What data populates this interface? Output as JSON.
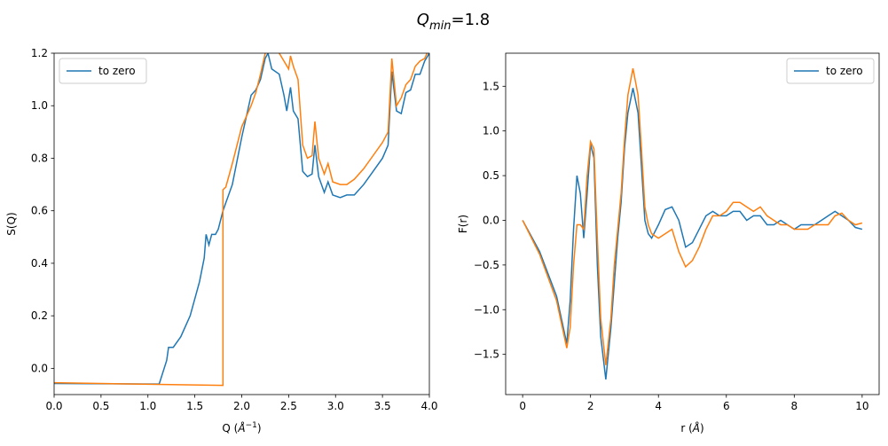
{
  "title": {
    "base": "Q",
    "sub": "min",
    "rest": "=1.8"
  },
  "chart_data": [
    {
      "type": "line",
      "ylabel": "S(Q)",
      "xlabel": {
        "pre": "Q (",
        "unit": "Å",
        "sup": "−1",
        "post": ")"
      },
      "xlim": [
        0,
        4
      ],
      "ylim": [
        -0.1,
        1.2
      ],
      "xticks": [
        {
          "value": 0,
          "label": "0.0"
        },
        0.5,
        {
          "value": 1,
          "label": "1.0"
        },
        1.5,
        {
          "value": 2,
          "label": "2.0"
        },
        2.5,
        {
          "value": 3,
          "label": "3.0"
        },
        3.5,
        {
          "value": 4,
          "label": "4.0"
        }
      ],
      "yticks": [
        {
          "value": 0,
          "label": "0.0"
        },
        0.2,
        0.4,
        0.6,
        0.8,
        {
          "value": 1,
          "label": "1.0"
        },
        1.2
      ],
      "legend": "upper left",
      "series": [
        {
          "name": "to zero",
          "color": "#1f77b4",
          "x": [
            0,
            1.12,
            1.2,
            1.22,
            1.27,
            1.35,
            1.45,
            1.55,
            1.6,
            1.62,
            1.65,
            1.68,
            1.72,
            1.75,
            1.8,
            1.83,
            1.9,
            2.0,
            2.05,
            2.1,
            2.15,
            2.2,
            2.25,
            2.28,
            2.32,
            2.4,
            2.45,
            2.48,
            2.52,
            2.55,
            2.6,
            2.65,
            2.7,
            2.75,
            2.78,
            2.82,
            2.88,
            2.92,
            2.97,
            3.05,
            3.12,
            3.2,
            3.3,
            3.4,
            3.5,
            3.56,
            3.6,
            3.65,
            3.7,
            3.75,
            3.8,
            3.85,
            3.9,
            3.95,
            4.0
          ],
          "values": [
            -0.058,
            -0.06,
            0.03,
            0.08,
            0.08,
            0.12,
            0.2,
            0.33,
            0.42,
            0.51,
            0.47,
            0.51,
            0.51,
            0.53,
            0.6,
            0.63,
            0.7,
            0.88,
            0.96,
            1.04,
            1.06,
            1.1,
            1.18,
            1.2,
            1.14,
            1.12,
            1.04,
            0.98,
            1.07,
            0.98,
            0.95,
            0.75,
            0.73,
            0.74,
            0.85,
            0.73,
            0.67,
            0.71,
            0.66,
            0.65,
            0.66,
            0.66,
            0.7,
            0.75,
            0.8,
            0.85,
            1.13,
            0.98,
            0.97,
            1.05,
            1.06,
            1.12,
            1.12,
            1.17,
            1.2
          ]
        },
        {
          "color": "#ff7f0e",
          "x": [
            0,
            1.8,
            1.8,
            1.83,
            1.9,
            2.0,
            2.1,
            2.15,
            2.2,
            2.25,
            2.3,
            2.35,
            2.4,
            2.45,
            2.5,
            2.52,
            2.55,
            2.6,
            2.65,
            2.7,
            2.75,
            2.78,
            2.82,
            2.88,
            2.92,
            2.97,
            3.05,
            3.12,
            3.2,
            3.3,
            3.4,
            3.5,
            3.56,
            3.6,
            3.65,
            3.7,
            3.75,
            3.8,
            3.85,
            3.9,
            3.95,
            4.0
          ],
          "values": [
            -0.055,
            -0.065,
            0.68,
            0.69,
            0.78,
            0.92,
            1.0,
            1.05,
            1.12,
            1.2,
            1.25,
            1.25,
            1.2,
            1.17,
            1.14,
            1.19,
            1.15,
            1.1,
            0.85,
            0.8,
            0.81,
            0.94,
            0.8,
            0.74,
            0.78,
            0.71,
            0.7,
            0.7,
            0.72,
            0.76,
            0.81,
            0.86,
            0.9,
            1.18,
            1.0,
            1.03,
            1.08,
            1.1,
            1.15,
            1.17,
            1.18,
            1.22
          ]
        }
      ]
    },
    {
      "type": "line",
      "ylabel": "F(r)",
      "xlabel": {
        "pre": "r (",
        "unit": "Å",
        "post": ")"
      },
      "xlim": [
        -0.5,
        10.5
      ],
      "ylim": [
        -1.95,
        1.87
      ],
      "xticks": [
        0,
        2,
        4,
        6,
        8,
        10
      ],
      "yticks": [
        {
          "value": -1.5,
          "label": "−1.5"
        },
        {
          "value": -1,
          "label": "−1.0"
        },
        {
          "value": -0.5,
          "label": "−0.5"
        },
        {
          "value": 0,
          "label": "0.0"
        },
        0.5,
        {
          "value": 1,
          "label": "1.0"
        },
        1.5
      ],
      "legend": "upper right",
      "x": [
        0,
        0.5,
        1.0,
        1.3,
        1.4,
        1.5,
        1.6,
        1.7,
        1.8,
        1.9,
        2.0,
        2.1,
        2.2,
        2.3,
        2.45,
        2.6,
        2.7,
        2.8,
        2.9,
        3.0,
        3.1,
        3.25,
        3.4,
        3.5,
        3.6,
        3.7,
        3.8,
        4.0,
        4.2,
        4.4,
        4.6,
        4.8,
        5.0,
        5.2,
        5.4,
        5.6,
        5.8,
        6.0,
        6.2,
        6.4,
        6.6,
        6.8,
        7.0,
        7.2,
        7.4,
        7.6,
        7.8,
        8.0,
        8.2,
        8.4,
        8.6,
        8.8,
        9.0,
        9.2,
        9.4,
        9.6,
        9.8,
        10
      ],
      "series": [
        {
          "name": "to zero",
          "color": "#1f77b4",
          "values": [
            0,
            -0.35,
            -0.85,
            -1.38,
            -0.9,
            -0.1,
            0.5,
            0.3,
            -0.2,
            0.3,
            0.85,
            0.7,
            -0.5,
            -1.3,
            -1.78,
            -1.2,
            -0.7,
            -0.2,
            0.2,
            0.8,
            1.2,
            1.48,
            1.2,
            0.6,
            0.0,
            -0.15,
            -0.2,
            -0.05,
            0.12,
            0.15,
            0.0,
            -0.3,
            -0.25,
            -0.1,
            0.05,
            0.1,
            0.05,
            0.05,
            0.1,
            0.1,
            0.0,
            0.05,
            0.05,
            -0.05,
            -0.05,
            0.0,
            -0.05,
            -0.1,
            -0.05,
            -0.05,
            -0.05,
            0.0,
            0.05,
            0.1,
            0.05,
            0.0,
            -0.08,
            -0.1
          ]
        },
        {
          "color": "#ff7f0e",
          "values": [
            0,
            -0.38,
            -0.9,
            -1.43,
            -1.2,
            -0.5,
            -0.05,
            -0.05,
            -0.1,
            0.5,
            0.88,
            0.8,
            -0.2,
            -1.1,
            -1.62,
            -1.1,
            -0.5,
            -0.1,
            0.3,
            0.9,
            1.4,
            1.7,
            1.4,
            0.8,
            0.15,
            -0.05,
            -0.15,
            -0.2,
            -0.15,
            -0.1,
            -0.35,
            -0.52,
            -0.45,
            -0.3,
            -0.1,
            0.05,
            0.05,
            0.1,
            0.2,
            0.2,
            0.15,
            0.1,
            0.15,
            0.05,
            0.0,
            -0.05,
            -0.05,
            -0.1,
            -0.1,
            -0.1,
            -0.05,
            -0.05,
            -0.05,
            0.05,
            0.08,
            0.0,
            -0.05,
            -0.03
          ]
        }
      ]
    }
  ]
}
